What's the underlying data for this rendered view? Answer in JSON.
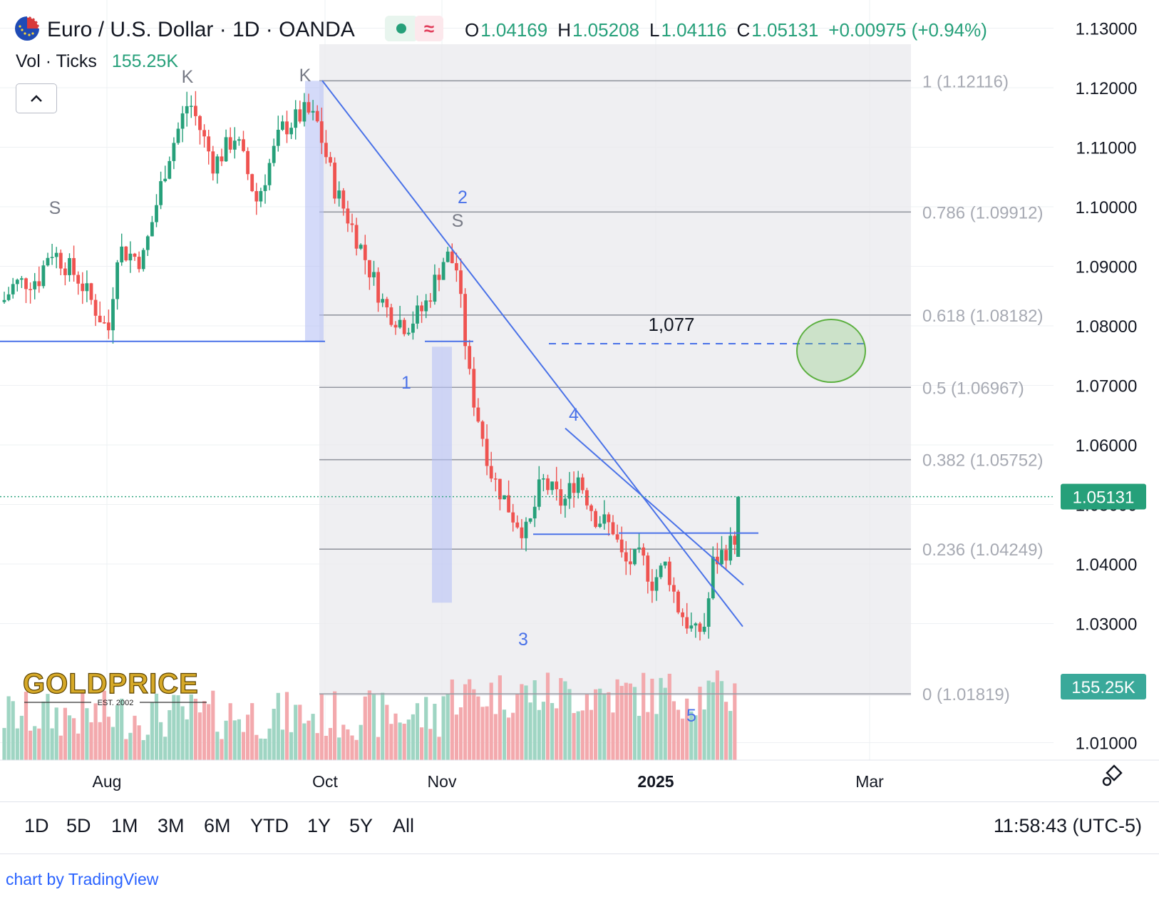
{
  "header": {
    "symbol_title": "Euro / U.S. Dollar · 1D · OANDA",
    "status_icon_red": "≈",
    "ohlc": {
      "o_label": "O",
      "o_value": "1.04169",
      "h_label": "H",
      "h_value": "1.05208",
      "l_label": "L",
      "l_value": "1.04116",
      "c_label": "C",
      "c_value": "1.05131",
      "change": "+0.00975 (+0.94%)"
    },
    "volume_label": "Vol · Ticks",
    "volume_value": "155.25K"
  },
  "chart_data": {
    "type": "candlestick",
    "y_axis": {
      "ticks": [
        "1.13000",
        "1.12000",
        "1.11000",
        "1.10000",
        "1.09000",
        "1.08000",
        "1.07000",
        "1.06000",
        "1.05000",
        "1.04000",
        "1.03000",
        "1.01000"
      ],
      "range": [
        1.01,
        1.13
      ]
    },
    "x_axis": {
      "ticks": [
        "Aug",
        "Oct",
        "Nov",
        "2025",
        "Mar"
      ]
    },
    "last_price": "1.05131",
    "last_volume": "155.25K",
    "fib_levels": [
      {
        "label": "1 (1.12116)",
        "value": 1.12116
      },
      {
        "label": "0.786 (1.09912)",
        "value": 1.09912
      },
      {
        "label": "0.618 (1.08182)",
        "value": 1.08182
      },
      {
        "label": "0.5 (1.06967)",
        "value": 1.06967
      },
      {
        "label": "0.382 (1.05752)",
        "value": 1.05752
      },
      {
        "label": "0.236 (1.04249)",
        "value": 1.04249
      },
      {
        "label": "0 (1.01819)",
        "value": 1.01819
      }
    ],
    "target_label": "1,077",
    "target_value": 1.077,
    "annotations": {
      "pattern": [
        "S",
        "K",
        "K",
        "S"
      ],
      "waves": [
        "1",
        "2",
        "3",
        "4",
        "5"
      ]
    },
    "colors": {
      "up": "#26a07a",
      "down": "#ef5350",
      "trend": "#4a72e8",
      "fib": "#9598a1",
      "target": "#7cc46a"
    }
  },
  "logo": {
    "text": "GOLDPRICE",
    "sub": "EST. 2002"
  },
  "range_buttons": [
    "1D",
    "5D",
    "1M",
    "3M",
    "6M",
    "YTD",
    "1Y",
    "5Y",
    "All"
  ],
  "clock": "11:58:43 (UTC-5)",
  "credit": "chart by TradingView"
}
